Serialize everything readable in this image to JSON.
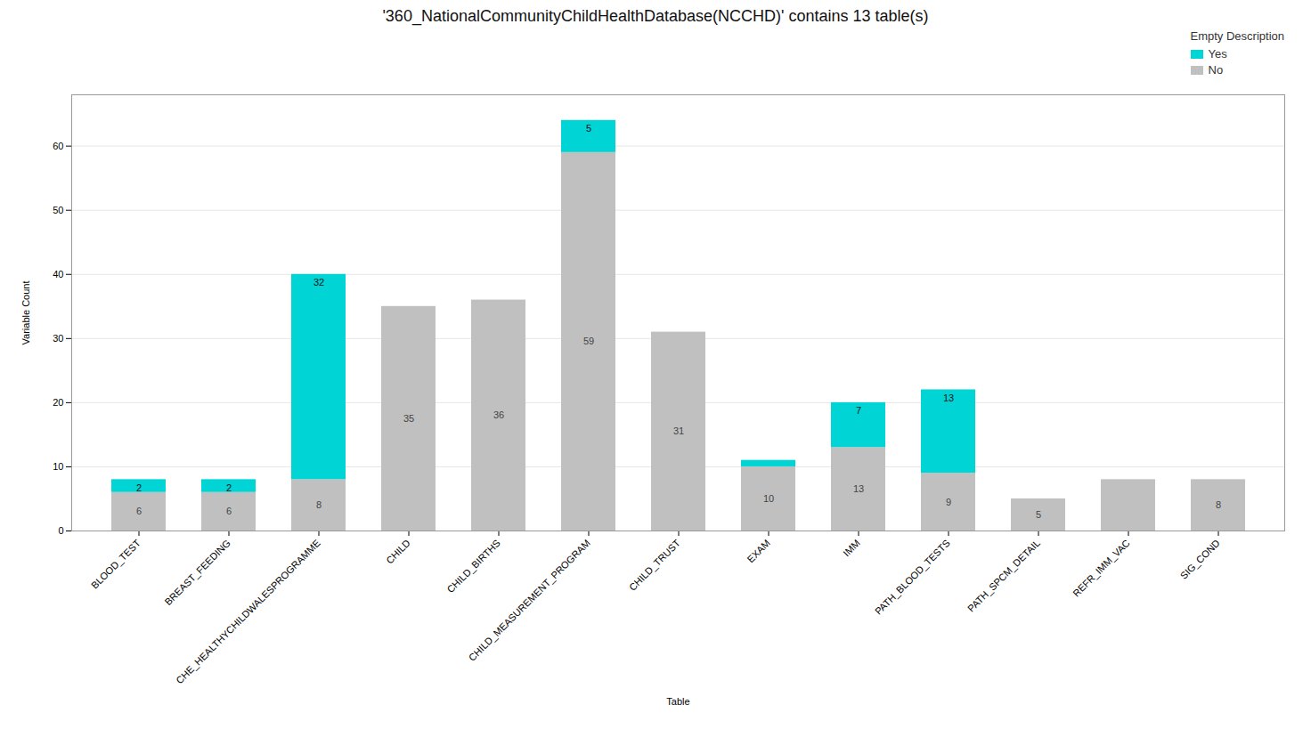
{
  "chart_data": {
    "type": "bar",
    "stacked": true,
    "title": "'360_NationalCommunityChildHealthDatabase(NCCHD)' contains 13 table(s)",
    "xlabel": "Table",
    "ylabel": "Variable Count",
    "categories": [
      "BLOOD_TEST",
      "BREAST_FEEDING",
      "CHE_HEALTHYCHILDWALESPROGRAMME",
      "CHILD",
      "CHILD_BIRTHS",
      "CHILD_MEASUREMENT_PROGRAM",
      "CHILD_TRUST",
      "EXAM",
      "IMM",
      "PATH_BLOOD_TESTS",
      "PATH_SPCM_DETAIL",
      "REFR_IMM_VAC",
      "SIG_COND"
    ],
    "series": [
      {
        "name": "No",
        "color": "#C0C0C0",
        "values": [
          6,
          6,
          8,
          35,
          36,
          59,
          31,
          10,
          13,
          9,
          5,
          8,
          8
        ],
        "value_labels": [
          "6",
          "6",
          "8",
          "35",
          "36",
          "59",
          "31",
          "10",
          "13",
          "9",
          "5",
          null,
          "8"
        ]
      },
      {
        "name": "Yes",
        "color": "#00D4D4",
        "values": [
          2,
          2,
          32,
          0,
          0,
          5,
          0,
          1,
          7,
          13,
          0,
          0,
          0
        ],
        "value_labels": [
          "2",
          "2",
          "32",
          null,
          null,
          "5",
          null,
          null,
          "7",
          "13",
          null,
          null,
          null
        ]
      }
    ],
    "ylim": [
      0,
      68
    ],
    "yticks": [
      0,
      10,
      20,
      30,
      40,
      50,
      60
    ],
    "grid": true,
    "legend": "upper right",
    "legend_title": "Empty Description",
    "data_labels": true
  }
}
